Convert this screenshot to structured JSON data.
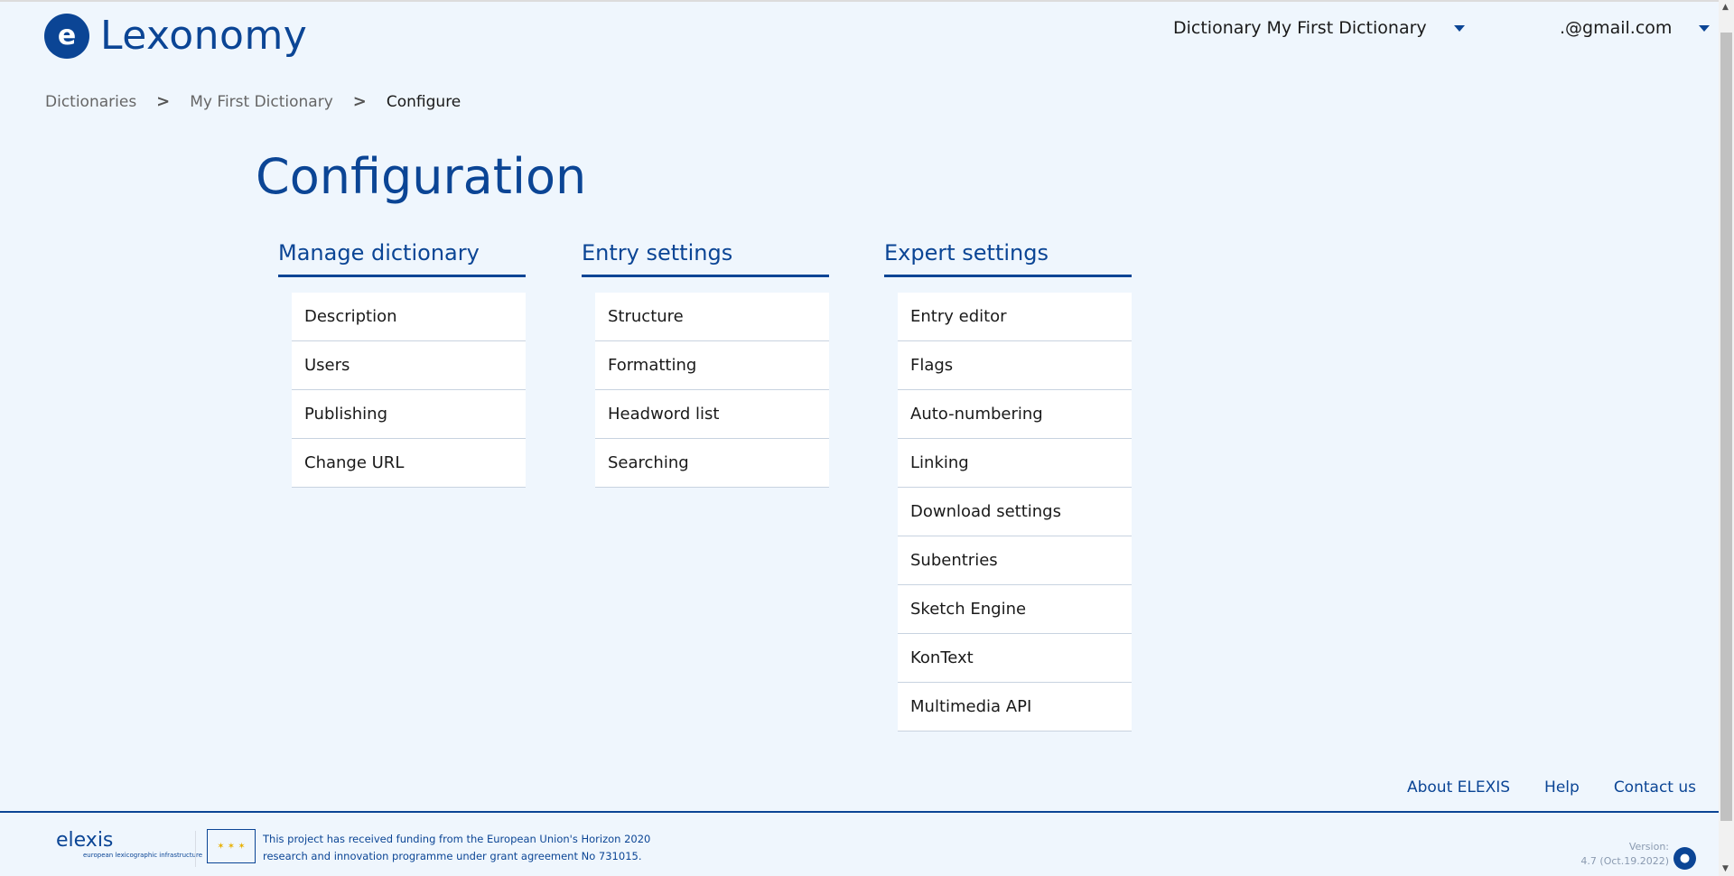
{
  "header": {
    "app_name": "Lexonomy",
    "dictionary_menu": "Dictionary My First Dictionary",
    "user_menu": ".@gmail.com"
  },
  "breadcrumb": [
    "Dictionaries",
    "My First Dictionary",
    "Configure"
  ],
  "page_title": "Configuration",
  "sections": [
    {
      "title": "Manage dictionary",
      "items": [
        "Description",
        "Users",
        "Publishing",
        "Change URL"
      ]
    },
    {
      "title": "Entry settings",
      "items": [
        "Structure",
        "Formatting",
        "Headword list",
        "Searching"
      ]
    },
    {
      "title": "Expert settings",
      "items": [
        "Entry editor",
        "Flags",
        "Auto-numbering",
        "Linking",
        "Download settings",
        "Subentries",
        "Sketch Engine",
        "KonText",
        "Multimedia API"
      ]
    }
  ],
  "footer": {
    "links": [
      "About ELEXIS",
      "Help",
      "Contact us"
    ],
    "elexis_logo": "elexis",
    "elexis_tagline": "european lexicographic infrastructure",
    "funding_line1": "This project has received funding from the European Union's Horizon 2020",
    "funding_line2": "research and innovation programme under grant agreement No 731015.",
    "version_label": "Version:",
    "version_value": "4.7 (Oct.19.2022)"
  },
  "colors": {
    "accent": "#0b4595",
    "background": "#eff6fd"
  },
  "icons": {
    "logo": "lexonomy-head-icon",
    "caret": "caret-down-icon",
    "github": "github-icon",
    "eu_flag": "eu-flag-icon"
  }
}
